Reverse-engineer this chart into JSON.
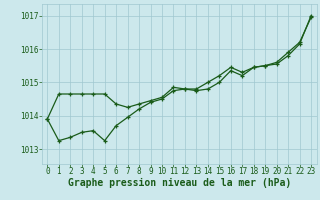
{
  "title": "Graphe pression niveau de la mer (hPa)",
  "background_color": "#cce8ec",
  "grid_color": "#a0c8d0",
  "line_color": "#1a5c1a",
  "marker_color": "#1a5c1a",
  "label_color": "#1a5c1a",
  "yticks": [
    1013,
    1014,
    1015,
    1016,
    1017
  ],
  "xticks": [
    0,
    1,
    2,
    3,
    4,
    5,
    6,
    7,
    8,
    9,
    10,
    11,
    12,
    13,
    14,
    15,
    16,
    17,
    18,
    19,
    20,
    21,
    22,
    23
  ],
  "ylim": [
    1012.55,
    1017.35
  ],
  "xlim": [
    -0.5,
    23.5
  ],
  "series1_x": [
    0,
    1,
    2,
    3,
    4,
    5,
    6,
    7,
    8,
    9,
    10,
    11,
    12,
    13,
    14,
    15,
    16,
    17,
    18,
    19,
    20,
    21,
    22,
    23
  ],
  "series1_y": [
    1013.9,
    1014.65,
    1014.65,
    1014.65,
    1014.65,
    1014.65,
    1014.35,
    1014.25,
    1014.35,
    1014.45,
    1014.55,
    1014.85,
    1014.8,
    1014.8,
    1015.0,
    1015.2,
    1015.45,
    1015.3,
    1015.45,
    1015.5,
    1015.55,
    1015.8,
    1016.15,
    1017.0
  ],
  "series2_x": [
    0,
    1,
    2,
    3,
    4,
    5,
    6,
    7,
    8,
    9,
    10,
    11,
    12,
    13,
    14,
    15,
    16,
    17,
    18,
    19,
    20,
    21,
    22,
    23
  ],
  "series2_y": [
    1013.9,
    1013.25,
    1013.35,
    1013.5,
    1013.55,
    1013.25,
    1013.7,
    1013.95,
    1014.2,
    1014.4,
    1014.5,
    1014.75,
    1014.8,
    1014.75,
    1014.8,
    1015.0,
    1015.35,
    1015.2,
    1015.45,
    1015.5,
    1015.6,
    1015.9,
    1016.2,
    1016.95
  ],
  "title_fontsize": 7,
  "tick_fontsize": 5.5,
  "linewidth": 0.9,
  "markersize": 3.0
}
